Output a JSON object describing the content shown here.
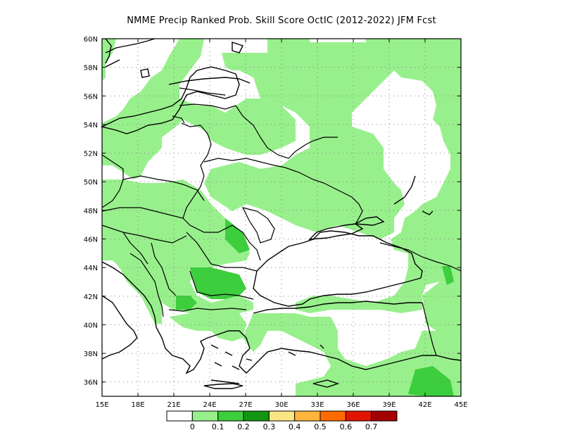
{
  "title": "NMME Precip Ranked Prob. Skill Score OctIC (2012-2022) JFM Fcst",
  "map": {
    "lon_labels": [
      "15E",
      "18E",
      "21E",
      "24E",
      "27E",
      "30E",
      "33E",
      "36E",
      "39E",
      "42E",
      "45E"
    ],
    "lat_labels": [
      "60N",
      "58N",
      "56N",
      "54N",
      "52N",
      "50N",
      "48N",
      "46N",
      "44N",
      "42N",
      "40N",
      "38N",
      "36N"
    ],
    "lon_range": [
      15,
      45
    ],
    "lat_range": [
      35,
      60
    ],
    "grid": true,
    "grid_style": "dotted"
  },
  "colorbar": {
    "colors": [
      "#ffffff",
      "#98f08c",
      "#3cce3c",
      "#129612",
      "#fae682",
      "#ffb43c",
      "#ff6a00",
      "#e11400",
      "#a50000"
    ],
    "labels": [
      "0",
      "0.1",
      "0.2",
      "0.3",
      "0.4",
      "0.5",
      "0.6",
      "0.7"
    ]
  },
  "colors": {
    "land_skill_low": "#98f08c",
    "land_skill_mid": "#3cce3c",
    "no_skill": "#ffffff",
    "coastline": "#000000"
  }
}
